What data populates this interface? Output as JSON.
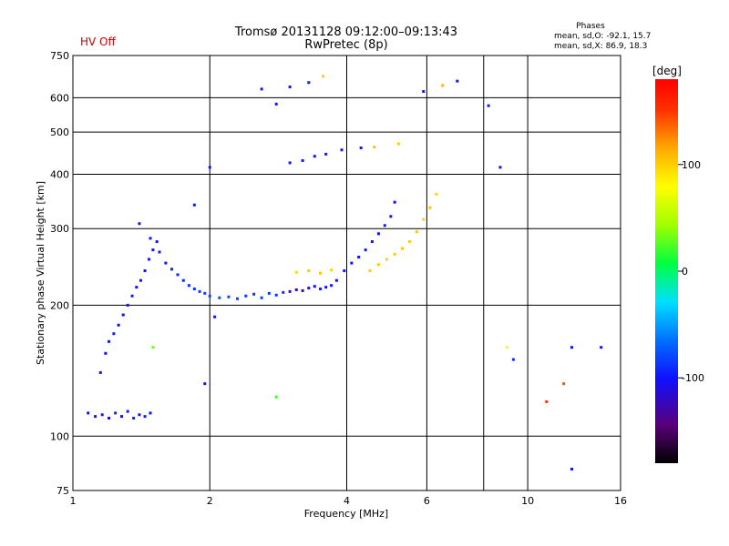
{
  "header": {
    "title": "Tromsø 20131128 09:12:00–09:13:43",
    "subtitle": "RwPretec (8p)",
    "status": "HV Off",
    "phases_title": "Phases",
    "phases_o": "mean, sd,O: -92.1, 15.7",
    "phases_x": "mean, sd,X:  86.9, 18.3"
  },
  "colors": {
    "status": "#cc0000",
    "grid": "#000000"
  },
  "chart_data": {
    "type": "scatter",
    "title": "Tromsø 20131128 09:12:00–09:13:43",
    "subtitle": "RwPretec (8p)",
    "xlabel": "Frequency [MHz]",
    "ylabel": "Stationary phase Virtual Height [km]",
    "xscale": "log",
    "yscale": "log",
    "xlim": [
      1,
      16
    ],
    "ylim": [
      75,
      750
    ],
    "xticks": [
      1,
      2,
      4,
      6,
      10,
      16
    ],
    "xgrid": [
      2,
      4,
      6,
      8,
      10
    ],
    "yticks": [
      75,
      100,
      200,
      300,
      400,
      500,
      600,
      750
    ],
    "ygrid": [
      100,
      200,
      300,
      400,
      500,
      600
    ],
    "grid": true,
    "colorbar": {
      "label": "[deg]",
      "range": [
        -180,
        180
      ],
      "ticks": [
        -100,
        0,
        100
      ]
    },
    "series": [
      {
        "points": [
          [
            1.08,
            113,
            -100
          ],
          [
            1.12,
            111,
            -105
          ],
          [
            1.16,
            112,
            -98
          ],
          [
            1.2,
            110,
            -102
          ],
          [
            1.24,
            113,
            -96
          ],
          [
            1.28,
            111,
            -110
          ],
          [
            1.32,
            114,
            -100
          ],
          [
            1.36,
            110,
            -95
          ],
          [
            1.4,
            112,
            -104
          ],
          [
            1.44,
            111,
            -99
          ],
          [
            1.48,
            113,
            -101
          ],
          [
            1.15,
            140,
            -105
          ],
          [
            1.18,
            155,
            -102
          ],
          [
            1.2,
            165,
            -100
          ],
          [
            1.23,
            172,
            -98
          ],
          [
            1.26,
            180,
            -103
          ],
          [
            1.29,
            190,
            -101
          ],
          [
            1.32,
            200,
            -99
          ],
          [
            1.35,
            210,
            -97
          ],
          [
            1.38,
            220,
            -100
          ],
          [
            1.41,
            228,
            -102
          ],
          [
            1.44,
            240,
            -104
          ],
          [
            1.47,
            255,
            -98
          ],
          [
            1.5,
            268,
            -101
          ],
          [
            1.53,
            280,
            -99
          ],
          [
            1.4,
            308,
            -102
          ],
          [
            1.48,
            285,
            -99
          ],
          [
            1.55,
            265,
            -100
          ],
          [
            1.6,
            250,
            -98
          ],
          [
            1.65,
            242,
            -96
          ],
          [
            1.7,
            235,
            -94
          ],
          [
            1.75,
            228,
            -92
          ],
          [
            1.8,
            222,
            -90
          ],
          [
            1.85,
            218,
            -88
          ],
          [
            1.9,
            215,
            -85
          ],
          [
            1.95,
            213,
            -83
          ],
          [
            2.0,
            210,
            -80
          ],
          [
            2.1,
            208,
            -78
          ],
          [
            2.2,
            209,
            -80
          ],
          [
            2.3,
            207,
            -82
          ],
          [
            2.4,
            210,
            -84
          ],
          [
            2.5,
            212,
            -86
          ],
          [
            2.6,
            208,
            -85
          ],
          [
            2.7,
            213,
            -87
          ],
          [
            2.8,
            211,
            -88
          ],
          [
            2.9,
            214,
            -90
          ],
          [
            3.0,
            215,
            -110
          ],
          [
            3.1,
            217,
            -120
          ],
          [
            3.2,
            216,
            -125
          ],
          [
            3.3,
            219,
            -105
          ],
          [
            3.4,
            221,
            -100
          ],
          [
            3.5,
            218,
            -98
          ],
          [
            3.6,
            220,
            -102
          ],
          [
            3.7,
            222,
            -100
          ],
          [
            3.1,
            238,
            95
          ],
          [
            3.3,
            240,
            100
          ],
          [
            3.5,
            237,
            105
          ],
          [
            3.7,
            241,
            98
          ],
          [
            3.8,
            228,
            -100
          ],
          [
            3.95,
            240,
            -102
          ],
          [
            4.1,
            250,
            -99
          ],
          [
            4.25,
            258,
            -101
          ],
          [
            4.4,
            268,
            -98
          ],
          [
            4.55,
            280,
            -100
          ],
          [
            4.7,
            292,
            -102
          ],
          [
            4.85,
            305,
            -99
          ],
          [
            5.0,
            320,
            -101
          ],
          [
            5.1,
            345,
            -103
          ],
          [
            4.5,
            240,
            100
          ],
          [
            4.7,
            248,
            102
          ],
          [
            4.9,
            255,
            98
          ],
          [
            5.1,
            262,
            101
          ],
          [
            5.3,
            270,
            103
          ],
          [
            5.5,
            280,
            99
          ],
          [
            5.7,
            295,
            101
          ],
          [
            5.9,
            315,
            100
          ],
          [
            6.1,
            335,
            104
          ],
          [
            6.3,
            360,
            98
          ],
          [
            3.0,
            425,
            -100
          ],
          [
            3.2,
            430,
            -98
          ],
          [
            3.4,
            440,
            -102
          ],
          [
            3.6,
            445,
            -100
          ],
          [
            3.9,
            455,
            -104
          ],
          [
            4.3,
            460,
            -100
          ],
          [
            4.6,
            462,
            105
          ],
          [
            5.2,
            470,
            100
          ],
          [
            2.6,
            628,
            -100
          ],
          [
            3.0,
            635,
            -102
          ],
          [
            3.3,
            650,
            -98
          ],
          [
            3.55,
            672,
            100
          ],
          [
            5.9,
            620,
            -100
          ],
          [
            6.5,
            640,
            110
          ],
          [
            7.0,
            655,
            -100
          ],
          [
            2.0,
            415,
            -100
          ],
          [
            2.8,
            580,
            -100
          ],
          [
            1.85,
            340,
            -100
          ],
          [
            8.2,
            575,
            -100
          ],
          [
            8.7,
            415,
            -100
          ],
          [
            9.0,
            160,
            80
          ],
          [
            9.3,
            150,
            -90
          ],
          [
            12.5,
            160,
            -100
          ],
          [
            14.5,
            160,
            -100
          ],
          [
            12.0,
            132,
            140
          ],
          [
            11.0,
            120,
            150
          ],
          [
            12.5,
            84,
            -100
          ],
          [
            1.95,
            132,
            -100
          ],
          [
            2.05,
            188,
            -100
          ],
          [
            2.8,
            123,
            20
          ],
          [
            1.5,
            160,
            30
          ]
        ]
      }
    ]
  }
}
